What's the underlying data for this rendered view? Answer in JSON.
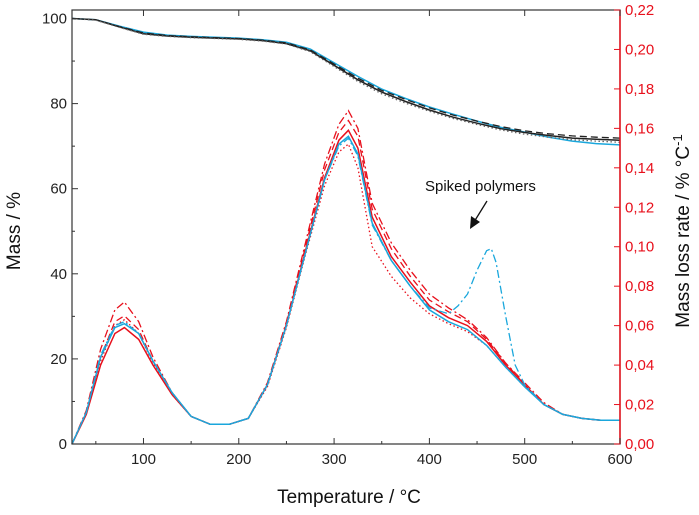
{
  "chart_data": {
    "type": "line",
    "xlabel": "Temperature / °C",
    "ylabel_left": "Mass / %",
    "ylabel_right": "Mass loss rate / %",
    "ylabel_right_unit": "°C",
    "ylabel_right_exp": "-1",
    "xlim": [
      25,
      600
    ],
    "ylim_left": [
      0,
      102
    ],
    "ylim_right": [
      0,
      0.22
    ],
    "x_ticks": [
      100,
      200,
      300,
      400,
      500,
      600
    ],
    "y_left_ticks": [
      0,
      20,
      40,
      60,
      80,
      100
    ],
    "y_right_ticks": [
      "0,00",
      "0,02",
      "0,04",
      "0,06",
      "0,08",
      "0,10",
      "0,12",
      "0,14",
      "0,16",
      "0,18",
      "0,20",
      "0,22"
    ],
    "annotation": "Spiked polymers",
    "colors": {
      "left_axis": "#222222",
      "right_axis": "#e8101c",
      "cyan": "#1aa7dc",
      "red": "#e8101c",
      "black": "#222222",
      "gray": "#666666"
    },
    "mass_series": [
      {
        "color": "#1aa7dc",
        "style": "solid",
        "x": [
          25,
          50,
          75,
          100,
          125,
          150,
          175,
          200,
          225,
          250,
          275,
          300,
          325,
          350,
          375,
          400,
          425,
          450,
          475,
          500,
          525,
          550,
          575,
          600
        ],
        "y": [
          100,
          99.7,
          98.2,
          96.8,
          96.1,
          95.8,
          95.6,
          95.4,
          95.0,
          94.4,
          92.8,
          89.6,
          86.4,
          83.4,
          81.2,
          79.2,
          77.5,
          75.9,
          74.4,
          73.3,
          72.1,
          71.2,
          70.6,
          70.3
        ]
      },
      {
        "color": "#222222",
        "style": "solid",
        "x": [
          25,
          50,
          75,
          100,
          125,
          150,
          175,
          200,
          225,
          250,
          275,
          300,
          325,
          350,
          375,
          400,
          425,
          450,
          475,
          500,
          525,
          550,
          575,
          600
        ],
        "y": [
          100,
          99.7,
          98.0,
          96.4,
          95.9,
          95.6,
          95.4,
          95.2,
          94.8,
          94.1,
          92.4,
          89.0,
          85.6,
          82.7,
          80.5,
          78.5,
          76.8,
          75.4,
          74.1,
          73.2,
          72.5,
          71.9,
          71.6,
          71.4
        ]
      },
      {
        "color": "#222222",
        "style": "dash",
        "x": [
          25,
          50,
          75,
          100,
          125,
          150,
          175,
          200,
          225,
          250,
          275,
          300,
          325,
          350,
          375,
          400,
          425,
          450,
          475,
          500,
          525,
          550,
          575,
          600
        ],
        "y": [
          100,
          99.7,
          98.1,
          96.6,
          96.0,
          95.7,
          95.5,
          95.3,
          94.9,
          94.3,
          92.6,
          89.3,
          86.0,
          83.1,
          81.0,
          79.0,
          77.3,
          75.9,
          74.6,
          73.6,
          72.9,
          72.4,
          72.1,
          71.9
        ]
      },
      {
        "color": "#666666",
        "style": "dot",
        "x": [
          25,
          50,
          75,
          100,
          125,
          150,
          175,
          200,
          225,
          250,
          275,
          300,
          325,
          350,
          375,
          400,
          425,
          450,
          475,
          500,
          525,
          550,
          575,
          600
        ],
        "y": [
          100,
          99.6,
          97.9,
          96.3,
          95.8,
          95.5,
          95.3,
          95.1,
          94.7,
          94.0,
          92.2,
          88.7,
          85.2,
          82.3,
          80.1,
          78.2,
          76.5,
          75.1,
          73.8,
          72.8,
          72.1,
          71.5,
          71.2,
          70.9
        ]
      }
    ],
    "rate_series": [
      {
        "color": "#e8101c",
        "style": "solid",
        "x": [
          25,
          40,
          55,
          70,
          80,
          95,
          110,
          130,
          150,
          170,
          190,
          210,
          230,
          250,
          270,
          290,
          305,
          315,
          325,
          340,
          360,
          380,
          400,
          420,
          440,
          460,
          480,
          500,
          520,
          540,
          560,
          580,
          600
        ],
        "y": [
          0.0,
          0.015,
          0.04,
          0.056,
          0.059,
          0.053,
          0.04,
          0.025,
          0.014,
          0.01,
          0.01,
          0.013,
          0.03,
          0.06,
          0.098,
          0.135,
          0.154,
          0.159,
          0.15,
          0.115,
          0.095,
          0.082,
          0.07,
          0.064,
          0.06,
          0.052,
          0.04,
          0.03,
          0.02,
          0.015,
          0.013,
          0.012,
          0.012
        ]
      },
      {
        "color": "#e8101c",
        "style": "dashdot",
        "x": [
          25,
          40,
          55,
          70,
          80,
          95,
          110,
          130,
          150,
          170,
          190,
          210,
          230,
          250,
          270,
          290,
          305,
          315,
          325,
          340,
          360,
          380,
          400,
          420,
          440,
          460,
          480,
          500,
          520,
          540,
          560,
          580,
          600
        ],
        "y": [
          0.0,
          0.017,
          0.048,
          0.068,
          0.072,
          0.062,
          0.044,
          0.026,
          0.014,
          0.01,
          0.01,
          0.013,
          0.031,
          0.062,
          0.102,
          0.142,
          0.162,
          0.169,
          0.16,
          0.122,
          0.102,
          0.088,
          0.076,
          0.069,
          0.063,
          0.054,
          0.041,
          0.031,
          0.021,
          0.015,
          0.013,
          0.012,
          0.012
        ]
      },
      {
        "color": "#e8101c",
        "style": "dash",
        "x": [
          25,
          40,
          55,
          70,
          80,
          95,
          110,
          130,
          150,
          170,
          190,
          210,
          230,
          250,
          270,
          290,
          305,
          315,
          325,
          340,
          360,
          380,
          400,
          420,
          440,
          460,
          480,
          500,
          520,
          540,
          560,
          580,
          600
        ],
        "y": [
          0.0,
          0.016,
          0.044,
          0.062,
          0.065,
          0.058,
          0.042,
          0.026,
          0.014,
          0.01,
          0.01,
          0.013,
          0.03,
          0.061,
          0.1,
          0.139,
          0.158,
          0.164,
          0.156,
          0.119,
          0.099,
          0.085,
          0.073,
          0.067,
          0.062,
          0.053,
          0.041,
          0.03,
          0.02,
          0.015,
          0.013,
          0.012,
          0.012
        ]
      },
      {
        "color": "#e8101c",
        "style": "dot",
        "x": [
          25,
          40,
          55,
          70,
          80,
          95,
          110,
          130,
          150,
          170,
          190,
          210,
          230,
          250,
          270,
          290,
          305,
          315,
          325,
          340,
          360,
          380,
          400,
          420,
          440,
          460,
          480,
          500,
          520,
          540,
          560,
          580,
          600
        ],
        "y": [
          0.0,
          0.016,
          0.042,
          0.06,
          0.063,
          0.056,
          0.041,
          0.025,
          0.014,
          0.01,
          0.01,
          0.013,
          0.029,
          0.059,
          0.096,
          0.131,
          0.148,
          0.152,
          0.14,
          0.1,
          0.085,
          0.074,
          0.066,
          0.061,
          0.057,
          0.05,
          0.039,
          0.029,
          0.02,
          0.015,
          0.013,
          0.012,
          0.012
        ]
      },
      {
        "color": "#1aa7dc",
        "style": "solid",
        "x": [
          25,
          40,
          55,
          70,
          80,
          95,
          110,
          130,
          150,
          170,
          190,
          210,
          230,
          250,
          270,
          290,
          305,
          315,
          325,
          340,
          360,
          380,
          400,
          420,
          440,
          460,
          480,
          500,
          520,
          540,
          560,
          580,
          600
        ],
        "y": [
          0.0,
          0.016,
          0.044,
          0.059,
          0.061,
          0.056,
          0.042,
          0.026,
          0.014,
          0.01,
          0.01,
          0.013,
          0.03,
          0.06,
          0.097,
          0.134,
          0.152,
          0.156,
          0.147,
          0.112,
          0.093,
          0.08,
          0.068,
          0.062,
          0.058,
          0.05,
          0.039,
          0.029,
          0.02,
          0.015,
          0.013,
          0.012,
          0.012
        ]
      },
      {
        "color": "#1aa7dc",
        "style": "dashdot",
        "x": [
          25,
          40,
          55,
          70,
          80,
          95,
          110,
          130,
          150,
          170,
          190,
          210,
          230,
          250,
          270,
          290,
          305,
          315,
          325,
          340,
          360,
          380,
          400,
          420,
          430,
          440,
          450,
          460,
          465,
          470,
          480,
          490,
          500,
          520,
          540,
          560,
          580,
          600
        ],
        "y": [
          0.0,
          0.016,
          0.045,
          0.06,
          0.062,
          0.056,
          0.042,
          0.026,
          0.014,
          0.01,
          0.01,
          0.013,
          0.03,
          0.06,
          0.097,
          0.134,
          0.151,
          0.155,
          0.146,
          0.111,
          0.093,
          0.08,
          0.069,
          0.066,
          0.07,
          0.076,
          0.088,
          0.098,
          0.099,
          0.092,
          0.065,
          0.04,
          0.03,
          0.02,
          0.015,
          0.013,
          0.012,
          0.012
        ]
      }
    ]
  }
}
